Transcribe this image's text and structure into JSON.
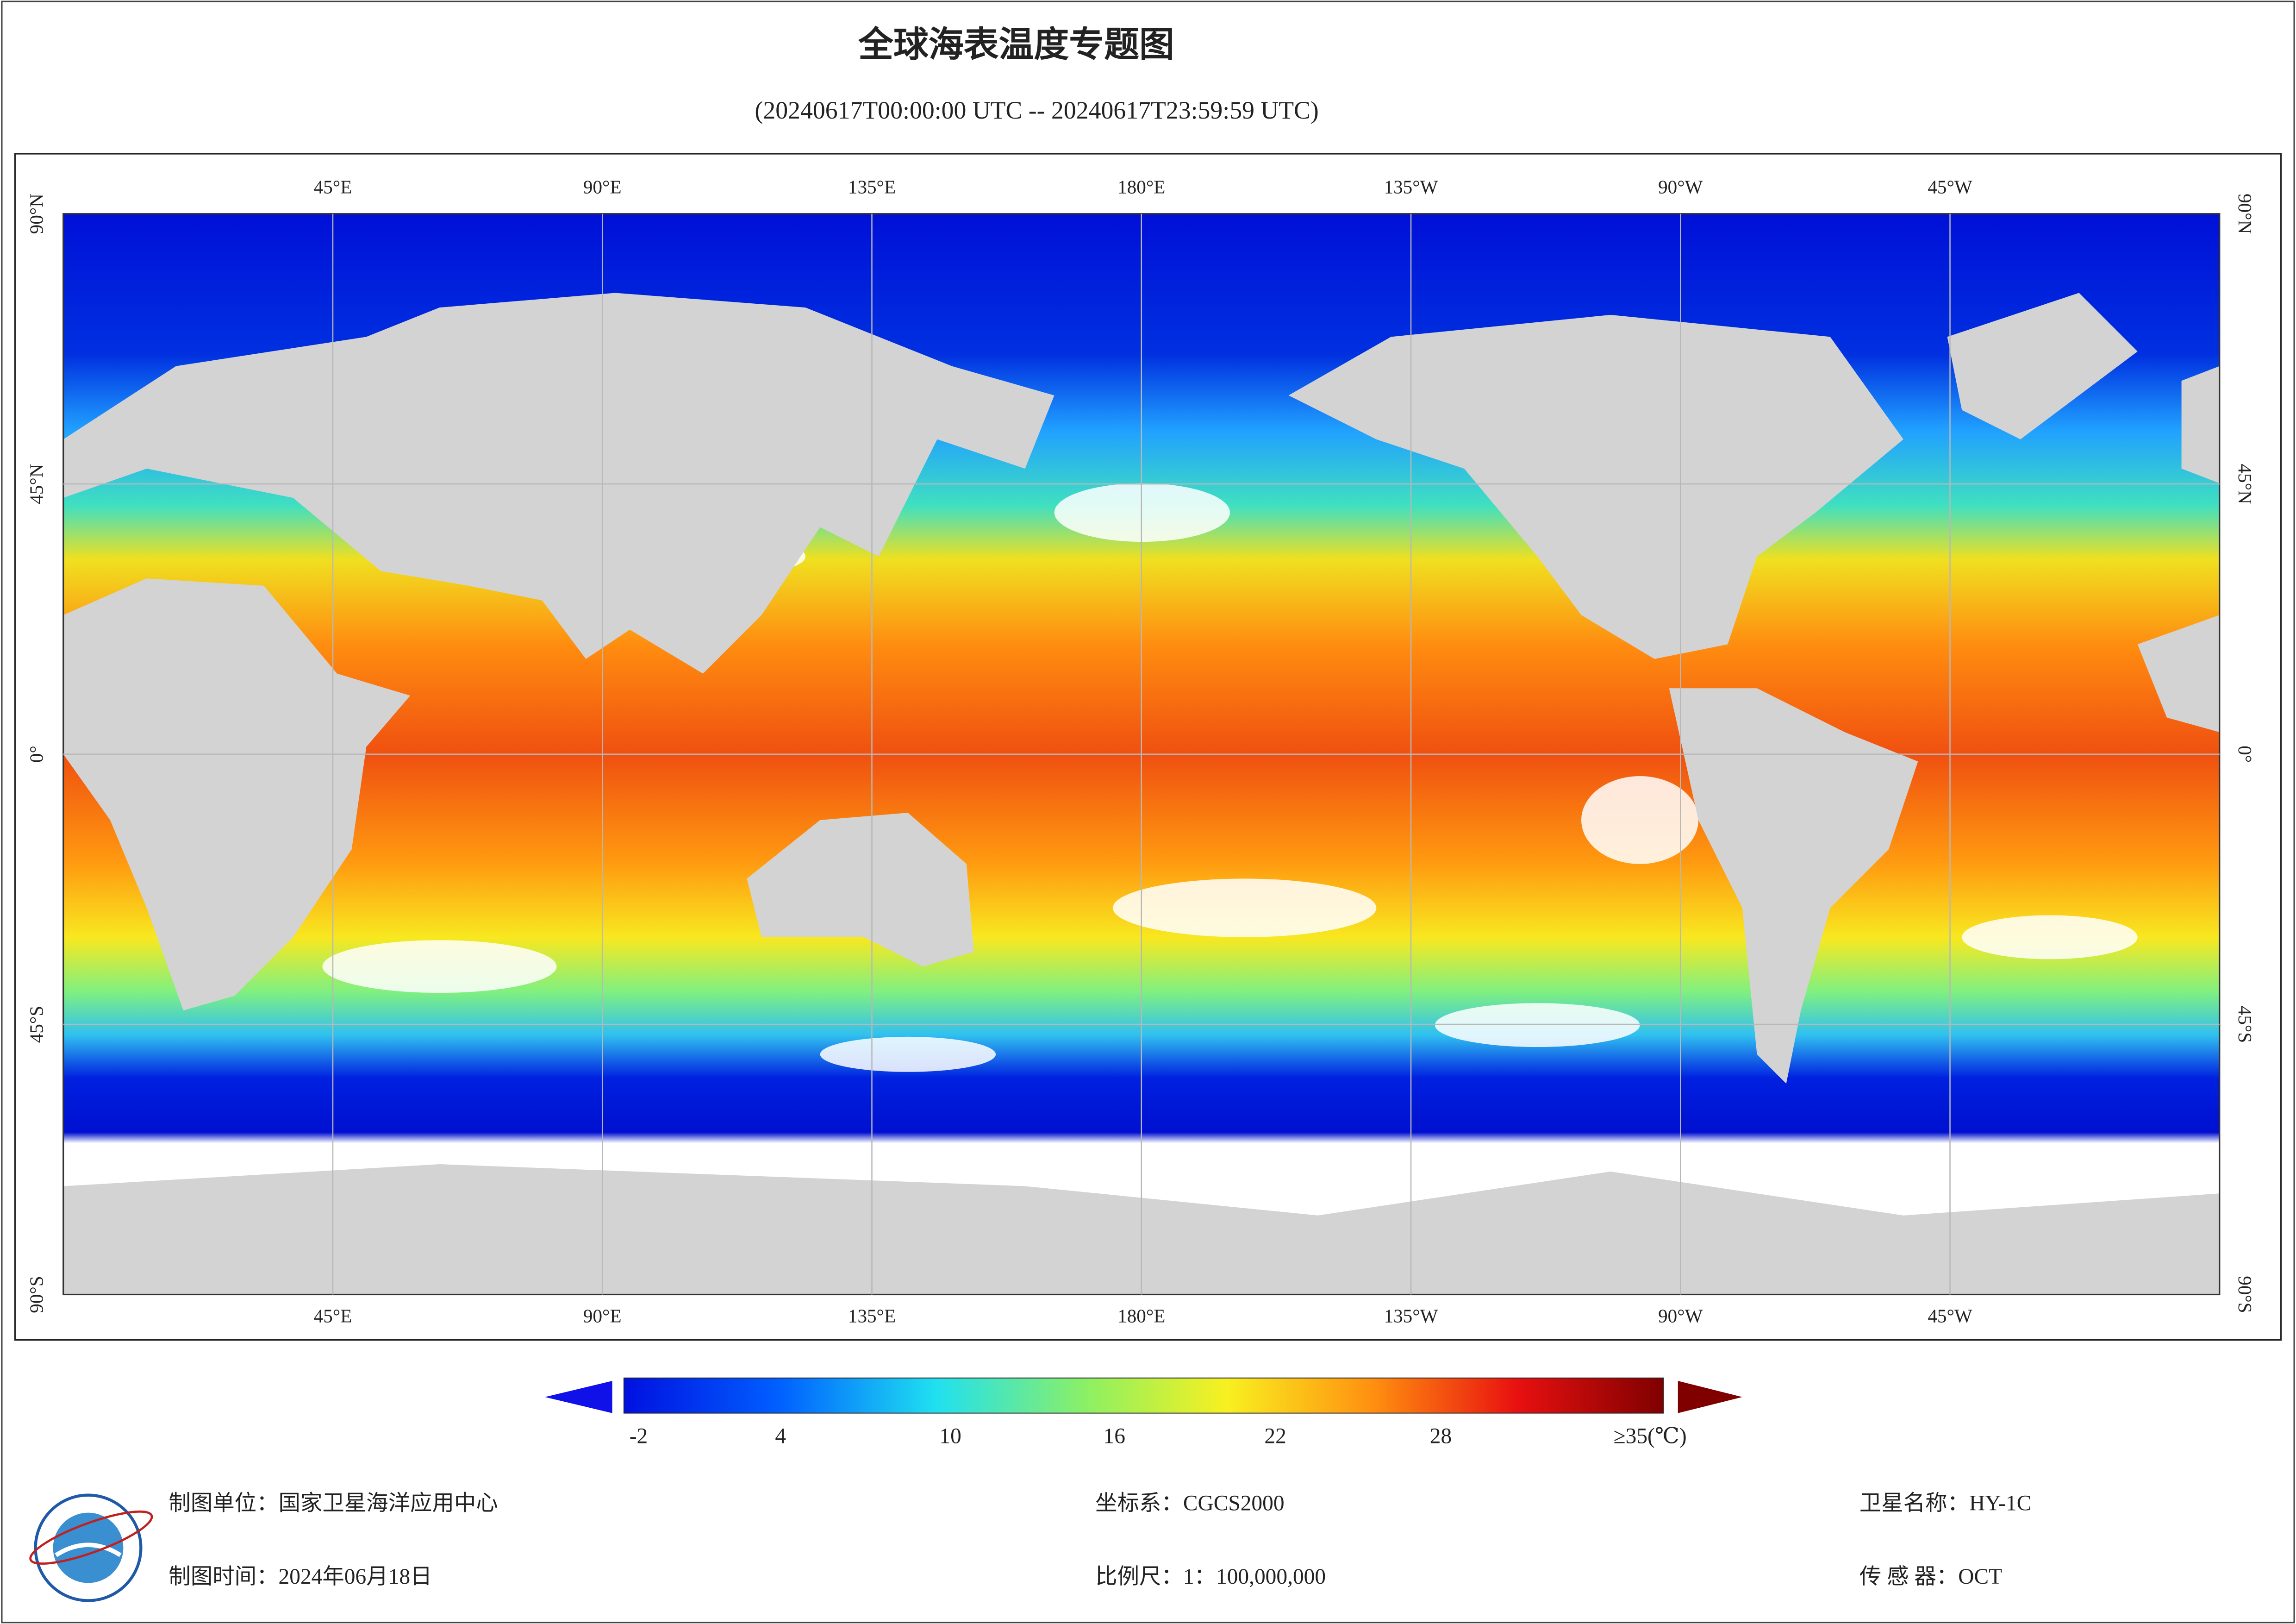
{
  "header": {
    "title": "全球海表温度专题图",
    "subtitle": "(20240617T00:00:00 UTC -- 20240617T23:59:59 UTC)"
  },
  "map": {
    "lon_labels": [
      "45°E",
      "90°E",
      "135°E",
      "180°E",
      "135°W",
      "90°W",
      "45°W"
    ],
    "lat_labels": [
      "90°N",
      "45°N",
      "0°",
      "45°S",
      "90°S"
    ]
  },
  "colorbar": {
    "labels": [
      "-2",
      "4",
      "10",
      "16",
      "22",
      "28",
      "≥35(℃)"
    ]
  },
  "footer": {
    "unit": "制图单位：国家卫星海洋应用中心",
    "time": "制图时间：2024年06月18日",
    "crs": "坐标系：CGCS2000",
    "scale": "比例尺：1：100,000,000",
    "satellite": "卫星名称：HY-1C",
    "sensor": "传 感 器：OCT"
  }
}
